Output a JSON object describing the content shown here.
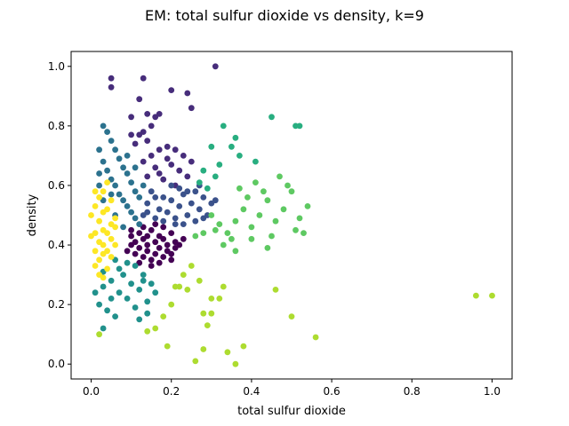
{
  "chart_data": {
    "type": "scatter",
    "title": "EM: total sulfur dioxide vs density, k=9",
    "xlabel": "total sulfur dioxide",
    "ylabel": "density",
    "xlim": [
      -0.05,
      1.05
    ],
    "ylim": [
      -0.05,
      1.05
    ],
    "xticks": [
      0.0,
      0.2,
      0.4,
      0.6,
      0.8,
      1.0
    ],
    "yticks": [
      0.0,
      0.2,
      0.4,
      0.6,
      0.8,
      1.0
    ],
    "xtick_labels": [
      "0.0",
      "0.2",
      "0.4",
      "0.6",
      "0.8",
      "1.0"
    ],
    "ytick_labels": [
      "0.0",
      "0.2",
      "0.4",
      "0.6",
      "0.8",
      "1.0"
    ],
    "grid": false,
    "colormap": "viridis",
    "clusters": [
      {
        "color": "#440154",
        "points": [
          [
            0.09,
            0.38
          ],
          [
            0.1,
            0.4
          ],
          [
            0.1,
            0.43
          ],
          [
            0.11,
            0.37
          ],
          [
            0.11,
            0.41
          ],
          [
            0.12,
            0.39
          ],
          [
            0.12,
            0.44
          ],
          [
            0.13,
            0.36
          ],
          [
            0.13,
            0.42
          ],
          [
            0.14,
            0.38
          ],
          [
            0.14,
            0.4
          ],
          [
            0.15,
            0.35
          ],
          [
            0.15,
            0.45
          ],
          [
            0.16,
            0.37
          ],
          [
            0.16,
            0.41
          ],
          [
            0.17,
            0.39
          ],
          [
            0.17,
            0.43
          ],
          [
            0.18,
            0.36
          ],
          [
            0.18,
            0.42
          ],
          [
            0.19,
            0.38
          ],
          [
            0.19,
            0.4
          ],
          [
            0.2,
            0.37
          ],
          [
            0.2,
            0.44
          ],
          [
            0.21,
            0.39
          ],
          [
            0.21,
            0.41
          ],
          [
            0.22,
            0.4
          ],
          [
            0.13,
            0.46
          ],
          [
            0.16,
            0.47
          ],
          [
            0.18,
            0.46
          ],
          [
            0.12,
            0.34
          ],
          [
            0.15,
            0.33
          ],
          [
            0.17,
            0.34
          ],
          [
            0.2,
            0.35
          ],
          [
            0.23,
            0.42
          ],
          [
            0.1,
            0.45
          ],
          [
            0.14,
            0.43
          ]
        ]
      },
      {
        "color": "#472d7b",
        "points": [
          [
            0.05,
            0.96
          ],
          [
            0.05,
            0.93
          ],
          [
            0.13,
            0.96
          ],
          [
            0.31,
            1.0
          ],
          [
            0.12,
            0.89
          ],
          [
            0.2,
            0.92
          ],
          [
            0.24,
            0.91
          ],
          [
            0.25,
            0.86
          ],
          [
            0.1,
            0.83
          ],
          [
            0.14,
            0.84
          ],
          [
            0.16,
            0.83
          ],
          [
            0.17,
            0.84
          ],
          [
            0.15,
            0.8
          ],
          [
            0.13,
            0.78
          ],
          [
            0.1,
            0.77
          ],
          [
            0.12,
            0.77
          ],
          [
            0.14,
            0.75
          ],
          [
            0.19,
            0.73
          ],
          [
            0.21,
            0.72
          ],
          [
            0.23,
            0.7
          ],
          [
            0.17,
            0.72
          ],
          [
            0.15,
            0.7
          ],
          [
            0.13,
            0.68
          ],
          [
            0.16,
            0.66
          ],
          [
            0.2,
            0.67
          ],
          [
            0.22,
            0.65
          ],
          [
            0.14,
            0.63
          ],
          [
            0.18,
            0.62
          ],
          [
            0.21,
            0.6
          ],
          [
            0.24,
            0.63
          ],
          [
            0.19,
            0.69
          ],
          [
            0.17,
            0.64
          ],
          [
            0.11,
            0.74
          ],
          [
            0.25,
            0.68
          ]
        ]
      },
      {
        "color": "#3b528b",
        "points": [
          [
            0.13,
            0.5
          ],
          [
            0.14,
            0.54
          ],
          [
            0.15,
            0.58
          ],
          [
            0.16,
            0.49
          ],
          [
            0.17,
            0.52
          ],
          [
            0.18,
            0.56
          ],
          [
            0.19,
            0.51
          ],
          [
            0.2,
            0.55
          ],
          [
            0.21,
            0.49
          ],
          [
            0.22,
            0.53
          ],
          [
            0.23,
            0.57
          ],
          [
            0.24,
            0.5
          ],
          [
            0.25,
            0.54
          ],
          [
            0.26,
            0.48
          ],
          [
            0.27,
            0.52
          ],
          [
            0.28,
            0.56
          ],
          [
            0.29,
            0.5
          ],
          [
            0.3,
            0.54
          ],
          [
            0.18,
            0.48
          ],
          [
            0.2,
            0.6
          ],
          [
            0.22,
            0.59
          ],
          [
            0.24,
            0.58
          ],
          [
            0.16,
            0.56
          ],
          [
            0.26,
            0.58
          ],
          [
            0.28,
            0.49
          ],
          [
            0.21,
            0.47
          ],
          [
            0.23,
            0.47
          ],
          [
            0.31,
            0.55
          ],
          [
            0.14,
            0.51
          ],
          [
            0.27,
            0.6
          ]
        ]
      },
      {
        "color": "#2c728e",
        "points": [
          [
            0.03,
            0.8
          ],
          [
            0.04,
            0.78
          ],
          [
            0.05,
            0.75
          ],
          [
            0.02,
            0.72
          ],
          [
            0.06,
            0.72
          ],
          [
            0.07,
            0.69
          ],
          [
            0.03,
            0.68
          ],
          [
            0.08,
            0.66
          ],
          [
            0.04,
            0.65
          ],
          [
            0.09,
            0.64
          ],
          [
            0.05,
            0.62
          ],
          [
            0.1,
            0.61
          ],
          [
            0.02,
            0.6
          ],
          [
            0.06,
            0.6
          ],
          [
            0.11,
            0.58
          ],
          [
            0.07,
            0.57
          ],
          [
            0.12,
            0.56
          ],
          [
            0.08,
            0.55
          ],
          [
            0.03,
            0.55
          ],
          [
            0.09,
            0.53
          ],
          [
            0.1,
            0.51
          ],
          [
            0.11,
            0.49
          ],
          [
            0.06,
            0.5
          ],
          [
            0.12,
            0.47
          ],
          [
            0.08,
            0.46
          ],
          [
            0.05,
            0.57
          ],
          [
            0.09,
            0.7
          ],
          [
            0.11,
            0.66
          ],
          [
            0.02,
            0.64
          ],
          [
            0.13,
            0.6
          ]
        ]
      },
      {
        "color": "#21918c",
        "points": [
          [
            0.02,
            0.2
          ],
          [
            0.03,
            0.26
          ],
          [
            0.04,
            0.18
          ],
          [
            0.05,
            0.28
          ],
          [
            0.06,
            0.16
          ],
          [
            0.07,
            0.24
          ],
          [
            0.08,
            0.3
          ],
          [
            0.09,
            0.22
          ],
          [
            0.1,
            0.27
          ],
          [
            0.11,
            0.19
          ],
          [
            0.12,
            0.25
          ],
          [
            0.13,
            0.3
          ],
          [
            0.14,
            0.21
          ],
          [
            0.15,
            0.27
          ],
          [
            0.16,
            0.24
          ],
          [
            0.07,
            0.32
          ],
          [
            0.09,
            0.34
          ],
          [
            0.05,
            0.22
          ],
          [
            0.03,
            0.31
          ],
          [
            0.12,
            0.15
          ],
          [
            0.14,
            0.17
          ],
          [
            0.01,
            0.24
          ],
          [
            0.11,
            0.33
          ],
          [
            0.06,
            0.35
          ],
          [
            0.13,
            0.28
          ],
          [
            0.03,
            0.12
          ]
        ]
      },
      {
        "color": "#28ae80",
        "points": [
          [
            0.45,
            0.83
          ],
          [
            0.52,
            0.8
          ],
          [
            0.51,
            0.8
          ],
          [
            0.33,
            0.8
          ],
          [
            0.36,
            0.76
          ],
          [
            0.3,
            0.73
          ],
          [
            0.35,
            0.73
          ],
          [
            0.37,
            0.7
          ],
          [
            0.41,
            0.68
          ],
          [
            0.32,
            0.67
          ],
          [
            0.28,
            0.65
          ],
          [
            0.31,
            0.63
          ],
          [
            0.27,
            0.61
          ],
          [
            0.29,
            0.59
          ]
        ]
      },
      {
        "color": "#5ec962",
        "points": [
          [
            0.3,
            0.5
          ],
          [
            0.32,
            0.47
          ],
          [
            0.34,
            0.44
          ],
          [
            0.36,
            0.48
          ],
          [
            0.38,
            0.52
          ],
          [
            0.4,
            0.46
          ],
          [
            0.42,
            0.5
          ],
          [
            0.44,
            0.55
          ],
          [
            0.46,
            0.48
          ],
          [
            0.48,
            0.52
          ],
          [
            0.5,
            0.58
          ],
          [
            0.52,
            0.49
          ],
          [
            0.54,
            0.53
          ],
          [
            0.49,
            0.6
          ],
          [
            0.47,
            0.63
          ],
          [
            0.43,
            0.58
          ],
          [
            0.41,
            0.61
          ],
          [
            0.39,
            0.56
          ],
          [
            0.37,
            0.59
          ],
          [
            0.35,
            0.42
          ],
          [
            0.33,
            0.4
          ],
          [
            0.31,
            0.45
          ],
          [
            0.45,
            0.43
          ],
          [
            0.51,
            0.45
          ],
          [
            0.53,
            0.44
          ],
          [
            0.28,
            0.44
          ],
          [
            0.26,
            0.43
          ],
          [
            0.4,
            0.42
          ],
          [
            0.44,
            0.39
          ],
          [
            0.36,
            0.38
          ]
        ]
      },
      {
        "color": "#addc30",
        "points": [
          [
            0.02,
            0.1
          ],
          [
            0.14,
            0.11
          ],
          [
            0.16,
            0.12
          ],
          [
            0.2,
            0.2
          ],
          [
            0.21,
            0.26
          ],
          [
            0.22,
            0.26
          ],
          [
            0.25,
            0.33
          ],
          [
            0.3,
            0.22
          ],
          [
            0.3,
            0.17
          ],
          [
            0.32,
            0.22
          ],
          [
            0.28,
            0.17
          ],
          [
            0.29,
            0.13
          ],
          [
            0.18,
            0.16
          ],
          [
            0.19,
            0.06
          ],
          [
            0.26,
            0.01
          ],
          [
            0.28,
            0.05
          ],
          [
            0.34,
            0.04
          ],
          [
            0.36,
            0.0
          ],
          [
            0.38,
            0.06
          ],
          [
            0.46,
            0.25
          ],
          [
            0.5,
            0.16
          ],
          [
            0.56,
            0.09
          ],
          [
            0.96,
            0.23
          ],
          [
            1.0,
            0.23
          ],
          [
            0.23,
            0.3
          ],
          [
            0.27,
            0.28
          ],
          [
            0.33,
            0.26
          ],
          [
            0.24,
            0.25
          ]
        ]
      },
      {
        "color": "#fde725",
        "points": [
          [
            0.0,
            0.5
          ],
          [
            0.01,
            0.44
          ],
          [
            0.02,
            0.56
          ],
          [
            0.03,
            0.4
          ],
          [
            0.04,
            0.52
          ],
          [
            0.05,
            0.47
          ],
          [
            0.01,
            0.38
          ],
          [
            0.02,
            0.35
          ],
          [
            0.03,
            0.58
          ],
          [
            0.04,
            0.32
          ],
          [
            0.05,
            0.42
          ],
          [
            0.06,
            0.49
          ],
          [
            0.02,
            0.3
          ],
          [
            0.03,
            0.45
          ],
          [
            0.01,
            0.53
          ],
          [
            0.04,
            0.61
          ],
          [
            0.05,
            0.36
          ],
          [
            0.06,
            0.4
          ],
          [
            0.02,
            0.48
          ],
          [
            0.03,
            0.37
          ],
          [
            0.0,
            0.43
          ],
          [
            0.04,
            0.44
          ],
          [
            0.01,
            0.33
          ],
          [
            0.05,
            0.55
          ],
          [
            0.03,
            0.51
          ],
          [
            0.02,
            0.41
          ],
          [
            0.06,
            0.46
          ],
          [
            0.01,
            0.58
          ],
          [
            0.04,
            0.38
          ],
          [
            0.03,
            0.29
          ]
        ]
      }
    ]
  }
}
